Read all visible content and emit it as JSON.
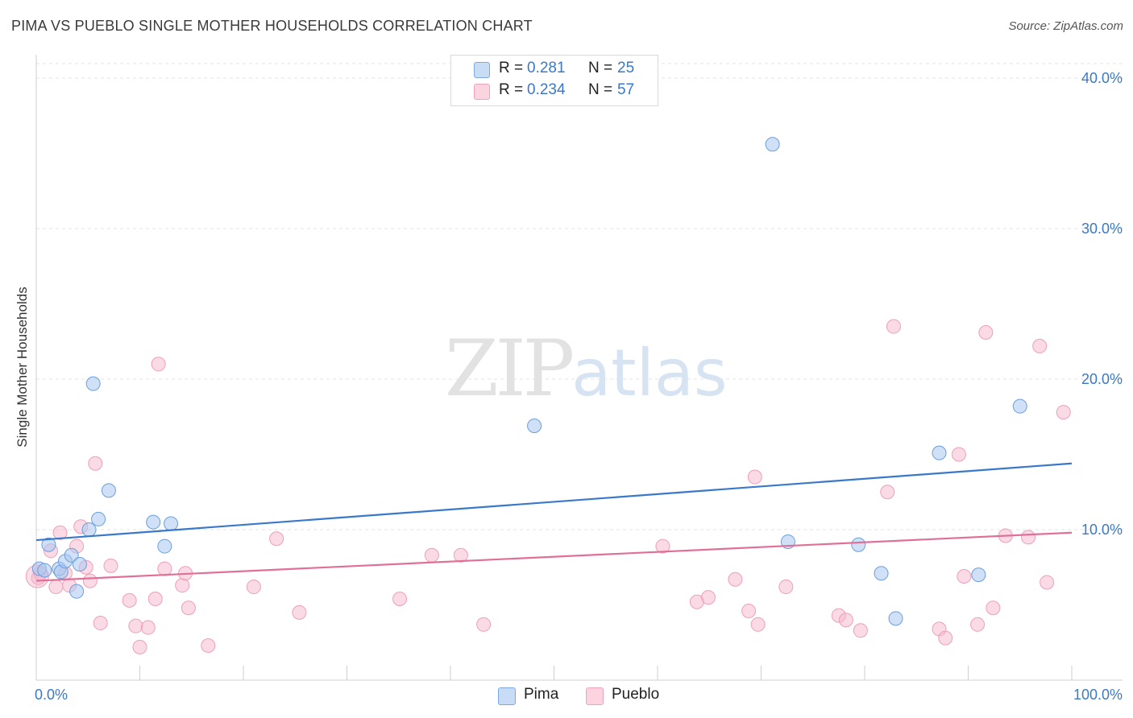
{
  "header": {
    "title": "PIMA VS PUEBLO SINGLE MOTHER HOUSEHOLDS CORRELATION CHART",
    "source": "Source: ZipAtlas.com"
  },
  "watermark": {
    "zip": "ZIP",
    "atlas": "atlas"
  },
  "legend": {
    "rows": [
      {
        "r_label": "R =",
        "r_value": "0.281",
        "n_label": "N =",
        "n_value": "25",
        "color": "#a9c8f0"
      },
      {
        "r_label": "R =",
        "r_value": "0.234",
        "n_label": "N =",
        "n_value": "57",
        "color": "#f6b8cb"
      }
    ]
  },
  "bottom_legend": {
    "items": [
      {
        "label": "Pima",
        "color": "#a9c8f0"
      },
      {
        "label": "Pueblo",
        "color": "#f6b8cb"
      }
    ]
  },
  "chart_data": {
    "type": "scatter",
    "title": "PIMA VS PUEBLO SINGLE MOTHER HOUSEHOLDS CORRELATION CHART",
    "xlabel": "",
    "ylabel": "Single Mother Households",
    "xlim": [
      0,
      100
    ],
    "ylim": [
      0,
      40
    ],
    "x_tick_labels": [
      "0.0%",
      "100.0%"
    ],
    "y_ticks": [
      10,
      20,
      30,
      40
    ],
    "y_tick_labels": [
      "10.0%",
      "20.0%",
      "30.0%",
      "40.0%"
    ],
    "grid": true,
    "colors": {
      "pima": "#3a78c9",
      "pueblo": "#e07098",
      "pima_fill": "#a9c8f0",
      "pueblo_fill": "#f6b8cb",
      "tick_label": "#3a78c9"
    },
    "series": [
      {
        "name": "Pima",
        "r": 0.281,
        "n": 25,
        "trend": {
          "x": [
            0,
            100
          ],
          "y": [
            9.3,
            14.4
          ]
        },
        "points": [
          [
            0.3,
            7.4
          ],
          [
            0.8,
            7.3
          ],
          [
            1.2,
            9.0
          ],
          [
            2.2,
            7.4
          ],
          [
            2.4,
            7.2
          ],
          [
            2.8,
            7.9
          ],
          [
            3.4,
            8.3
          ],
          [
            3.9,
            5.9
          ],
          [
            4.2,
            7.7
          ],
          [
            5.1,
            10.0
          ],
          [
            5.5,
            19.7
          ],
          [
            6.0,
            10.7
          ],
          [
            7.0,
            12.6
          ],
          [
            11.3,
            10.5
          ],
          [
            12.4,
            8.9
          ],
          [
            13.0,
            10.4
          ],
          [
            48.1,
            16.9
          ],
          [
            72.6,
            9.2
          ],
          [
            71.1,
            35.6
          ],
          [
            79.4,
            9.0
          ],
          [
            81.6,
            7.1
          ],
          [
            83.0,
            4.1
          ],
          [
            87.2,
            15.1
          ],
          [
            91.0,
            7.0
          ],
          [
            95.0,
            18.2
          ]
        ]
      },
      {
        "name": "Pueblo",
        "r": 0.234,
        "n": 57,
        "trend": {
          "x": [
            0,
            100
          ],
          "y": [
            6.6,
            9.8
          ]
        },
        "points": [
          [
            0.2,
            6.8
          ],
          [
            0.4,
            7.1
          ],
          [
            1.4,
            8.6
          ],
          [
            1.9,
            6.2
          ],
          [
            2.3,
            9.8
          ],
          [
            2.8,
            7.1
          ],
          [
            3.2,
            6.3
          ],
          [
            3.9,
            8.9
          ],
          [
            4.3,
            10.2
          ],
          [
            4.8,
            7.5
          ],
          [
            5.2,
            6.6
          ],
          [
            5.7,
            14.4
          ],
          [
            6.2,
            3.8
          ],
          [
            7.2,
            7.6
          ],
          [
            9.0,
            5.3
          ],
          [
            9.6,
            3.6
          ],
          [
            10.0,
            2.2
          ],
          [
            10.8,
            3.5
          ],
          [
            11.5,
            5.4
          ],
          [
            11.8,
            21.0
          ],
          [
            12.4,
            7.4
          ],
          [
            14.1,
            6.3
          ],
          [
            14.4,
            7.1
          ],
          [
            14.7,
            4.8
          ],
          [
            16.6,
            2.3
          ],
          [
            21.0,
            6.2
          ],
          [
            23.2,
            9.4
          ],
          [
            25.4,
            4.5
          ],
          [
            35.1,
            5.4
          ],
          [
            38.2,
            8.3
          ],
          [
            41.0,
            8.3
          ],
          [
            43.2,
            3.7
          ],
          [
            60.5,
            8.9
          ],
          [
            63.8,
            5.2
          ],
          [
            64.9,
            5.5
          ],
          [
            67.5,
            6.7
          ],
          [
            68.8,
            4.6
          ],
          [
            69.4,
            13.5
          ],
          [
            69.7,
            3.7
          ],
          [
            72.4,
            6.2
          ],
          [
            77.5,
            4.3
          ],
          [
            78.2,
            4.0
          ],
          [
            79.6,
            3.3
          ],
          [
            82.8,
            23.5
          ],
          [
            82.2,
            12.5
          ],
          [
            87.2,
            3.4
          ],
          [
            87.8,
            2.8
          ],
          [
            89.1,
            15.0
          ],
          [
            89.6,
            6.9
          ],
          [
            90.9,
            3.7
          ],
          [
            91.7,
            23.1
          ],
          [
            92.4,
            4.8
          ],
          [
            93.6,
            9.6
          ],
          [
            95.8,
            9.5
          ],
          [
            96.9,
            22.2
          ],
          [
            97.6,
            6.5
          ],
          [
            99.2,
            17.8
          ]
        ]
      }
    ]
  }
}
